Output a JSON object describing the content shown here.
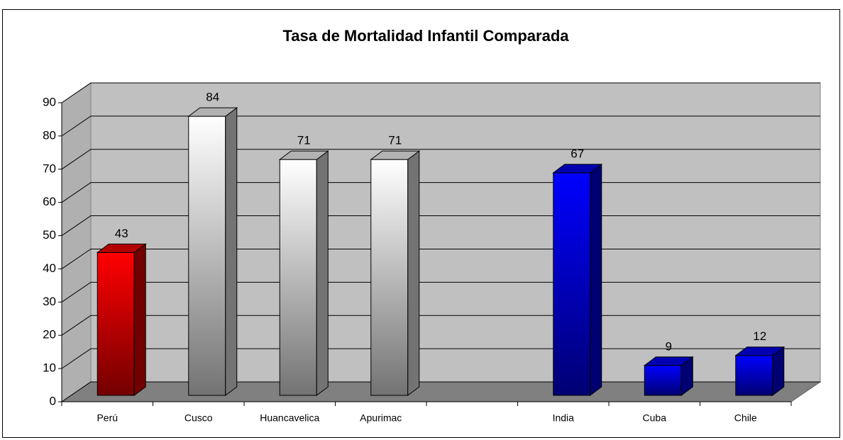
{
  "chart_data": {
    "type": "bar3d",
    "title": "Tasa de Mortalidad Infantil Comparada",
    "categories": [
      "Perú",
      "Cusco",
      "Huancavelica",
      "Apurimac",
      null,
      "India",
      "Cuba",
      "Chile"
    ],
    "values": [
      43,
      84,
      71,
      71,
      null,
      67,
      9,
      12
    ],
    "colors": [
      "#ff0000",
      "#ffffff",
      "#ffffff",
      "#ffffff",
      null,
      "#0000ff",
      "#0000ff",
      "#0000ff"
    ],
    "ylim": [
      0,
      90
    ],
    "yticks": [
      0,
      10,
      20,
      30,
      40,
      50,
      60,
      70,
      80,
      90
    ],
    "grid": true
  }
}
